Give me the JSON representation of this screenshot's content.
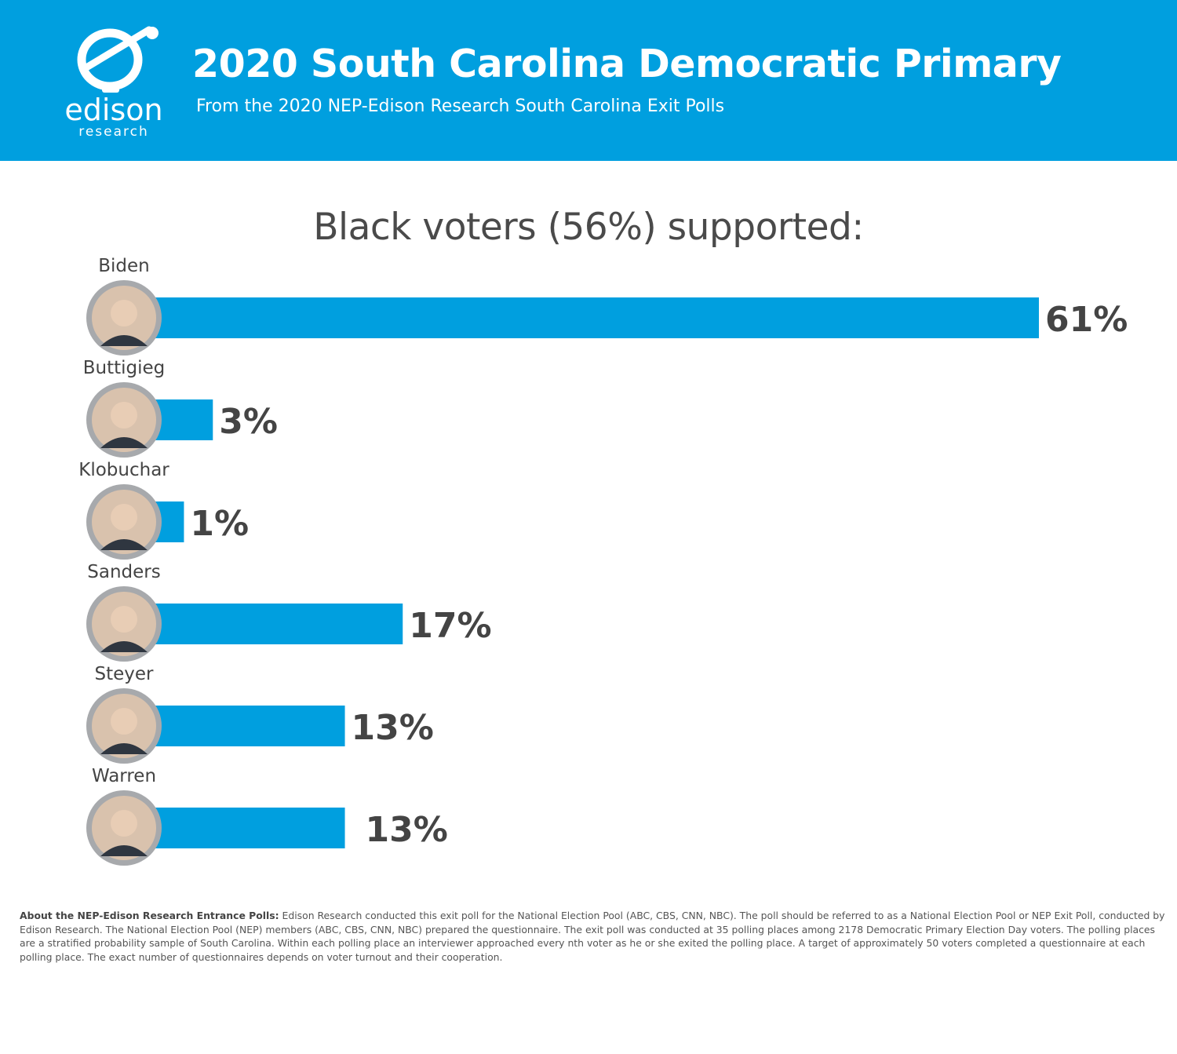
{
  "header": {
    "logo_name": "edison",
    "logo_sub": "research",
    "title": "2020 South Carolina Democratic Primary",
    "subtitle": "From the 2020 NEP-Edison Research South Carolina Exit Polls"
  },
  "colors": {
    "brand_blue": "#009fdf",
    "bar": "#009fdf",
    "text_dark": "#4a4a4a",
    "avatar_ring": "#a7a9ac"
  },
  "chart_data": {
    "type": "bar",
    "orientation": "horizontal",
    "title": "Black voters (56%) supported:",
    "categories": [
      "Biden",
      "Buttigieg",
      "Klobuchar",
      "Sanders",
      "Steyer",
      "Warren"
    ],
    "values": [
      61,
      3,
      1,
      17,
      13,
      13
    ],
    "value_labels": [
      "61%",
      "3%",
      "1%",
      "17%",
      "13%",
      "13%"
    ],
    "value_unit": "%",
    "grid": false,
    "legend": "none",
    "avatars": "candidate-photo"
  },
  "footnote": {
    "label": "About the NEP-Edison Research Entrance Polls:",
    "text": " Edison Research conducted this exit poll for the National Election Pool (ABC, CBS, CNN, NBC). The poll should be referred to as a National Election Pool or NEP Exit Poll, conducted by Edison Research. The National Election Pool (NEP) members (ABC, CBS, CNN, NBC) prepared the questionnaire. The exit poll was conducted at 35 polling places among 2178 Democratic Primary Election Day voters. The polling places are a stratified probability sample of South Carolina. Within each polling place an interviewer approached every nth voter as he or she exited the polling place. A target of approximately 50 voters completed a questionnaire at each polling place. The exact number of questionnaires depends on voter turnout and their cooperation."
  }
}
